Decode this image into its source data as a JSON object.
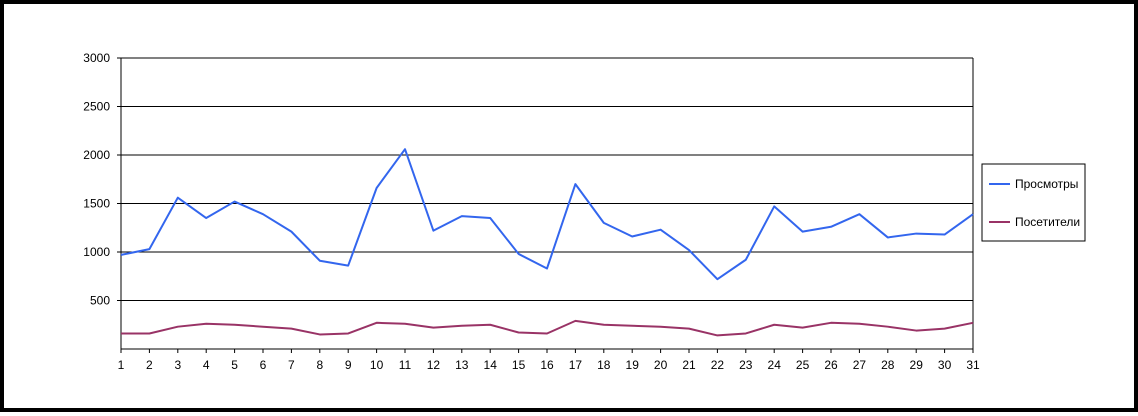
{
  "chart_data": {
    "type": "line",
    "title": "",
    "xlabel": "",
    "ylabel": "",
    "x": [
      1,
      2,
      3,
      4,
      5,
      6,
      7,
      8,
      9,
      10,
      11,
      12,
      13,
      14,
      15,
      16,
      17,
      18,
      19,
      20,
      21,
      22,
      23,
      24,
      25,
      26,
      27,
      28,
      29,
      30,
      31
    ],
    "y_ticks": [
      500,
      1000,
      1500,
      2000,
      2500,
      3000
    ],
    "ylim": [
      0,
      3000
    ],
    "grid": true,
    "legend_position": "right",
    "series": [
      {
        "name": "Просмотры",
        "color": "#3366ee",
        "values": [
          970,
          1030,
          1560,
          1350,
          1520,
          1390,
          1210,
          910,
          860,
          1660,
          2060,
          1220,
          1370,
          1350,
          980,
          830,
          1700,
          1300,
          1160,
          1230,
          1020,
          720,
          920,
          1470,
          1210,
          1260,
          1390,
          1150,
          1190,
          1180,
          1390
        ]
      },
      {
        "name": "Посетители",
        "color": "#993366",
        "values": [
          160,
          160,
          230,
          260,
          250,
          230,
          210,
          150,
          160,
          270,
          260,
          220,
          240,
          250,
          170,
          160,
          290,
          250,
          240,
          230,
          210,
          140,
          160,
          250,
          220,
          270,
          260,
          230,
          190,
          210,
          270
        ]
      }
    ]
  }
}
